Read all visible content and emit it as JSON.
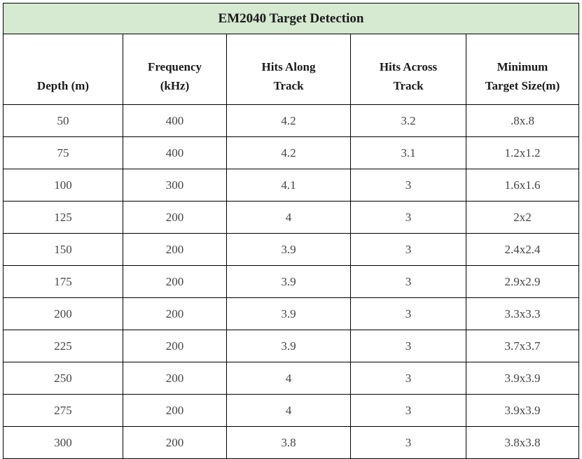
{
  "table": {
    "title": "EM2040 Target Detection",
    "headers": [
      {
        "line1": "",
        "line2": "Depth (m)"
      },
      {
        "line1": "Frequency",
        "line2": "(kHz)"
      },
      {
        "line1": "Hits Along",
        "line2": "Track"
      },
      {
        "line1": "Hits Across",
        "line2": "Track"
      },
      {
        "line1": "Minimum",
        "line2": "Target Size(m)"
      }
    ],
    "rows": [
      [
        "50",
        "400",
        "4.2",
        "3.2",
        ".8x.8"
      ],
      [
        "75",
        "400",
        "4.2",
        "3.1",
        "1.2x1.2"
      ],
      [
        "100",
        "300",
        "4.1",
        "3",
        "1.6x1.6"
      ],
      [
        "125",
        "200",
        "4",
        "3",
        "2x2"
      ],
      [
        "150",
        "200",
        "3.9",
        "3",
        "2.4x2.4"
      ],
      [
        "175",
        "200",
        "3.9",
        "3",
        "2.9x2.9"
      ],
      [
        "200",
        "200",
        "3.9",
        "3",
        "3.3x3.3"
      ],
      [
        "225",
        "200",
        "3.9",
        "3",
        "3.7x3.7"
      ],
      [
        "250",
        "200",
        "4",
        "3",
        "3.9x3.9"
      ],
      [
        "275",
        "200",
        "4",
        "3",
        "3.9x3.9"
      ],
      [
        "300",
        "200",
        "3.8",
        "3",
        "3.8x3.8"
      ]
    ]
  },
  "colors": {
    "title_background": "#d6e9d1",
    "border": "#000000"
  }
}
